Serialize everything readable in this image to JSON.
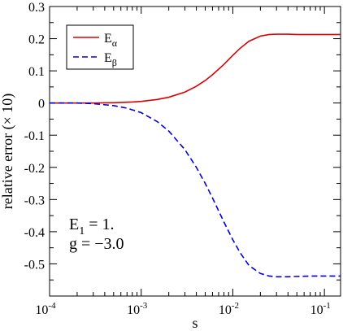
{
  "chart_data": {
    "type": "line",
    "xlabel": "s",
    "ylabel": "relative error (× 10)",
    "xscale": "log",
    "xlim": [
      0.0001,
      0.15
    ],
    "ylim": [
      -0.6,
      0.3
    ],
    "grid": false,
    "legend_position": "top-left",
    "x_ticks": [
      {
        "value": 0.0001,
        "base": "10",
        "exp": "-4"
      },
      {
        "value": 0.001,
        "base": "10",
        "exp": "-3"
      },
      {
        "value": 0.01,
        "base": "10",
        "exp": "-2"
      },
      {
        "value": 0.1,
        "base": "10",
        "exp": "-1"
      }
    ],
    "y_ticks": [
      {
        "value": 0.3,
        "label": "0.3"
      },
      {
        "value": 0.2,
        "label": "0.2"
      },
      {
        "value": 0.1,
        "label": "0.1"
      },
      {
        "value": 0,
        "label": "0"
      },
      {
        "value": -0.1,
        "label": "-0.1"
      },
      {
        "value": -0.2,
        "label": "-0.2"
      },
      {
        "value": -0.3,
        "label": "-0.3"
      },
      {
        "value": -0.4,
        "label": "-0.4"
      },
      {
        "value": -0.5,
        "label": "-0.5"
      }
    ],
    "series": [
      {
        "name": "Eα",
        "legend_main": "E",
        "legend_sub": "α",
        "color": "#dd0000",
        "dash": "solid",
        "x": [
          0.0001,
          0.0003,
          0.0005,
          0.0008,
          0.001,
          0.0015,
          0.002,
          0.003,
          0.004,
          0.005,
          0.006,
          0.008,
          0.01,
          0.012,
          0.015,
          0.02,
          0.025,
          0.03,
          0.04,
          0.05,
          0.07,
          0.1,
          0.15
        ],
        "y": [
          0.0,
          0.0,
          0.001,
          0.003,
          0.005,
          0.011,
          0.018,
          0.034,
          0.052,
          0.07,
          0.088,
          0.12,
          0.148,
          0.17,
          0.192,
          0.208,
          0.213,
          0.214,
          0.214,
          0.213,
          0.213,
          0.213,
          0.213
        ]
      },
      {
        "name": "Eβ",
        "legend_main": "E",
        "legend_sub": "β",
        "color": "#0000dd",
        "dash": "dashed",
        "x": [
          0.0001,
          0.0002,
          0.0003,
          0.0005,
          0.0007,
          0.001,
          0.0015,
          0.002,
          0.003,
          0.004,
          0.005,
          0.006,
          0.008,
          0.01,
          0.012,
          0.015,
          0.02,
          0.025,
          0.03,
          0.04,
          0.05,
          0.07,
          0.1,
          0.15
        ],
        "y": [
          0.0,
          0.0,
          -0.002,
          -0.008,
          -0.016,
          -0.03,
          -0.058,
          -0.087,
          -0.145,
          -0.2,
          -0.25,
          -0.295,
          -0.37,
          -0.425,
          -0.465,
          -0.505,
          -0.53,
          -0.538,
          -0.54,
          -0.54,
          -0.539,
          -0.538,
          -0.538,
          -0.538
        ]
      }
    ],
    "annotation": {
      "line1_main": "E",
      "line1_sub": "1",
      "line1_rest": " = 1.",
      "line2": "g = −3.0"
    }
  }
}
